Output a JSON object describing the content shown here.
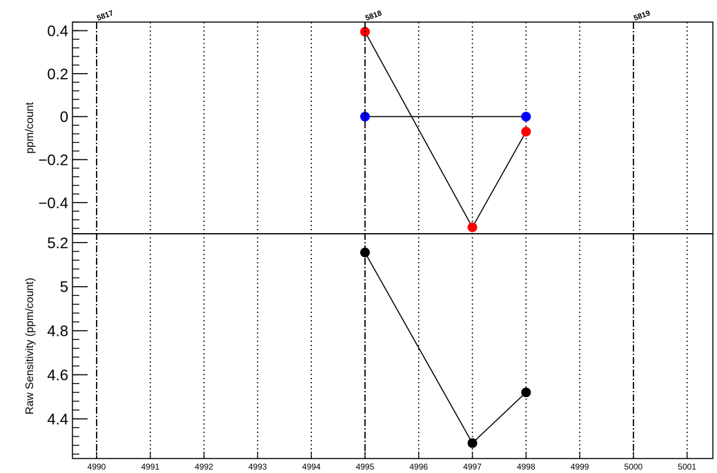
{
  "chart_data": [
    {
      "type": "scatter",
      "ylabel": "ppm/count",
      "ylim": [
        -0.545,
        0.44
      ],
      "yticks": [
        0.4,
        0.2,
        0,
        -0.2,
        -0.4
      ],
      "ytick_labels": [
        "0.4",
        "0.2",
        "0",
        "−0.2",
        "−0.4"
      ],
      "series": [
        {
          "color": "#ff0000",
          "x": [
            4995,
            4997,
            4998
          ],
          "y": [
            0.395,
            -0.515,
            -0.07
          ]
        },
        {
          "color": "#0000ff",
          "x": [
            4995,
            4998
          ],
          "y": [
            0.0,
            0.0
          ]
        }
      ]
    },
    {
      "type": "scatter",
      "ylabel": "Raw Sensitivity (ppm/count)",
      "ylim": [
        4.22,
        5.24
      ],
      "yticks": [
        5.2,
        5.0,
        4.8,
        4.6,
        4.4
      ],
      "ytick_labels": [
        "5.2",
        "5",
        "4.8",
        "4.6",
        "4.4"
      ],
      "series": [
        {
          "color": "#000000",
          "x": [
            4995,
            4997,
            4998
          ],
          "y": [
            5.155,
            4.29,
            4.52
          ]
        }
      ]
    }
  ],
  "x_axis": {
    "xlim": [
      4989.55,
      5001.48
    ],
    "ticks": [
      4990,
      4991,
      4992,
      4993,
      4994,
      4995,
      4996,
      4997,
      4998,
      4999,
      5000,
      5001
    ],
    "tick_labels": [
      "4990",
      "4991",
      "4992",
      "4993",
      "4994",
      "4995",
      "4996",
      "4997",
      "4998",
      "4999",
      "5000",
      "5001"
    ],
    "grid": true
  },
  "run_markers": [
    {
      "x": 4990,
      "label": "5817"
    },
    {
      "x": 4995,
      "label": "5818"
    },
    {
      "x": 5000,
      "label": "5819"
    }
  ],
  "colors": {
    "axes": "#000000",
    "grid": "#000000",
    "background": "#ffffff"
  }
}
